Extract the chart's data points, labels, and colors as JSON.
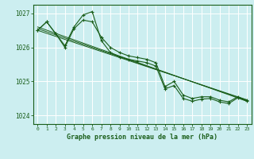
{
  "title": "Graphe pression niveau de la mer (hPa)",
  "bg_color": "#cceef0",
  "grid_color": "#ffffff",
  "line_color": "#1a5e1a",
  "xlim": [
    -0.5,
    23.5
  ],
  "ylim": [
    1023.75,
    1027.25
  ],
  "yticks": [
    1024,
    1025,
    1026,
    1027
  ],
  "xticks": [
    0,
    1,
    2,
    3,
    4,
    5,
    6,
    7,
    8,
    9,
    10,
    11,
    12,
    13,
    14,
    15,
    16,
    17,
    18,
    19,
    20,
    21,
    22,
    23
  ],
  "series1": {
    "x": [
      0,
      1,
      2,
      3,
      4,
      5,
      6,
      7,
      8,
      9,
      10,
      11,
      12,
      13,
      14,
      15,
      16,
      17,
      18,
      19,
      20,
      21,
      22,
      23
    ],
    "y": [
      1026.5,
      1026.75,
      1026.4,
      1026.0,
      1026.55,
      1026.8,
      1026.75,
      1026.3,
      1026.0,
      1025.85,
      1025.75,
      1025.7,
      1025.65,
      1025.55,
      1024.85,
      1025.0,
      1024.6,
      1024.5,
      1024.55,
      1024.55,
      1024.45,
      1024.4,
      1024.55,
      1024.45
    ]
  },
  "series2": {
    "x": [
      0,
      1,
      2,
      3,
      4,
      5,
      6,
      7,
      8,
      9,
      10,
      11,
      12,
      13,
      14,
      15,
      16,
      17,
      18,
      19,
      20,
      21,
      22,
      23
    ],
    "y": [
      1026.5,
      1026.75,
      1026.4,
      1026.05,
      1026.6,
      1026.95,
      1027.05,
      1026.2,
      1025.85,
      1025.72,
      1025.65,
      1025.6,
      1025.55,
      1025.45,
      1024.78,
      1024.88,
      1024.5,
      1024.42,
      1024.48,
      1024.5,
      1024.4,
      1024.35,
      1024.52,
      1024.42
    ]
  },
  "trend1": {
    "x": [
      0,
      23
    ],
    "y": [
      1026.6,
      1024.42
    ]
  },
  "trend2": {
    "x": [
      0,
      23
    ],
    "y": [
      1026.55,
      1024.44
    ]
  },
  "trend3": {
    "x": [
      0,
      23
    ],
    "y": [
      1026.5,
      1024.46
    ]
  },
  "figsize": [
    3.2,
    2.0
  ],
  "dpi": 100
}
